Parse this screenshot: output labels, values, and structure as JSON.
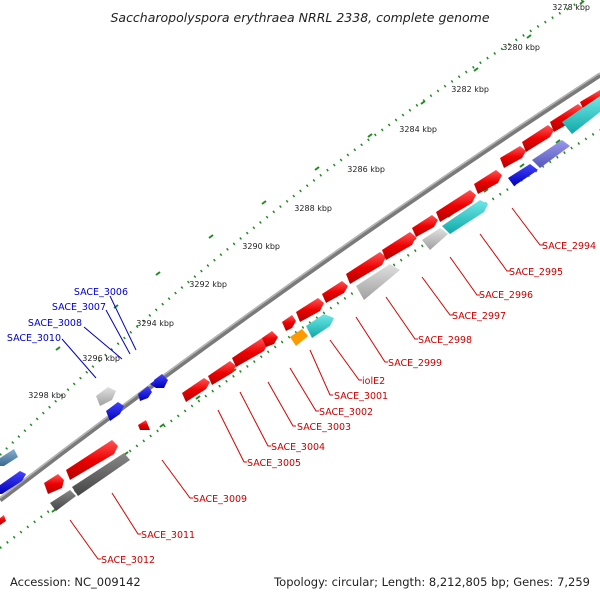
{
  "title": "Saccharopolyspora erythraea NRRL 2338, complete genome",
  "footer": {
    "accession": "Accession: NC_009142",
    "summary": "Topology: circular; Length: 8,212,805 bp; Genes: 7,259"
  },
  "ticks": [
    "3278 kbp",
    "3280 kbp",
    "3282 kbp",
    "3284 kbp",
    "3286 kbp",
    "3288 kbp",
    "3290 kbp",
    "3292 kbp",
    "3294 kbp",
    "3296 kbp",
    "3298 kbp"
  ],
  "gene_labels_inner": [
    "SACE_2994",
    "SACE_2995",
    "SACE_2996",
    "SACE_2997",
    "SACE_2998",
    "SACE_2999",
    "iolE2",
    "SACE_3001",
    "SACE_3002",
    "SACE_3003",
    "SACE_3004",
    "SACE_3005",
    "SACE_3009",
    "SACE_3011",
    "SACE_3012"
  ],
  "gene_labels_outer": [
    "SACE_3006",
    "SACE_3007",
    "SACE_3008",
    "SACE_3010"
  ],
  "colors": {
    "backbone": "#8a8a8a",
    "tick": "#228b22",
    "red": "#e00000",
    "blue": "#1010d8",
    "cyan": "#20c0c0",
    "gray": "#c0c0c0",
    "darkgray": "#606060",
    "orange": "#ff9900",
    "purple": "#7070dd",
    "label_red": "#cc0000",
    "label_blue": "#0000cc"
  }
}
